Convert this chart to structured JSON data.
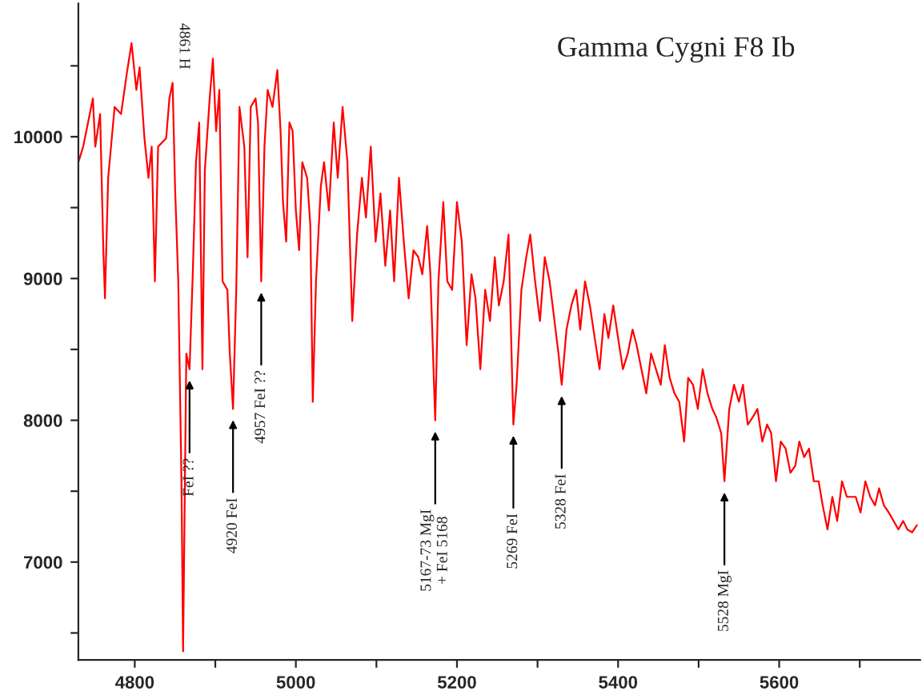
{
  "chart_data": {
    "type": "line",
    "title": "Gamma Cygni F8 Ib",
    "color": "#ff0000",
    "xlim": [
      4730,
      5775
    ],
    "ylim": [
      6310,
      10940
    ],
    "xticks": [
      4800,
      {
        "value": 4900,
        "label": null
      },
      5000,
      {
        "value": 5100,
        "label": null
      },
      5200,
      {
        "value": 5300,
        "label": null
      },
      5400,
      {
        "value": 5500,
        "label": null
      },
      5600,
      {
        "value": 5700,
        "label": null
      }
    ],
    "yticks": [
      {
        "value": 6500,
        "label": null
      },
      7000,
      {
        "value": 7500,
        "label": null
      },
      8000,
      {
        "value": 8500,
        "label": null
      },
      9000,
      {
        "value": 9500,
        "label": null
      },
      10000,
      {
        "value": 10500,
        "label": null
      }
    ],
    "x": [
      4730,
      4736,
      4742,
      4748,
      4751,
      4757,
      4761,
      4763,
      4767,
      4775,
      4783,
      4790,
      4796,
      4802,
      4806,
      4812,
      4817,
      4821,
      4825,
      4829,
      4839,
      4843,
      4847,
      4850,
      4854,
      4858,
      4860,
      4864,
      4868,
      4872,
      4876,
      4880,
      4884,
      4887,
      4893,
      4897,
      4901,
      4905,
      4909,
      4915,
      4918,
      4922,
      4926,
      4930,
      4936,
      4940,
      4944,
      4950,
      4953,
      4957,
      4961,
      4965,
      4971,
      4977,
      4981,
      4984,
      4988,
      4992,
      4996,
      5000,
      5004,
      5008,
      5014,
      5018,
      5021,
      5025,
      5031,
      5035,
      5041,
      5047,
      5052,
      5058,
      5064,
      5070,
      5076,
      5082,
      5087,
      5093,
      5099,
      5105,
      5111,
      5117,
      5122,
      5128,
      5134,
      5140,
      5146,
      5152,
      5157,
      5163,
      5167,
      5173,
      5177,
      5183,
      5188,
      5194,
      5200,
      5206,
      5212,
      5218,
      5223,
      5229,
      5235,
      5241,
      5247,
      5252,
      5258,
      5264,
      5270,
      5274,
      5280,
      5286,
      5291,
      5297,
      5303,
      5309,
      5315,
      5320,
      5326,
      5330,
      5336,
      5342,
      5348,
      5353,
      5359,
      5365,
      5371,
      5377,
      5383,
      5388,
      5394,
      5400,
      5406,
      5412,
      5418,
      5423,
      5429,
      5435,
      5441,
      5447,
      5453,
      5458,
      5464,
      5470,
      5476,
      5482,
      5487,
      5493,
      5499,
      5505,
      5511,
      5517,
      5522,
      5528,
      5532,
      5538,
      5544,
      5550,
      5555,
      5561,
      5567,
      5573,
      5579,
      5585,
      5590,
      5596,
      5602,
      5608,
      5614,
      5620,
      5625,
      5631,
      5637,
      5643,
      5649,
      5654,
      5660,
      5666,
      5672,
      5678,
      5684,
      5689,
      5695,
      5701,
      5707,
      5713,
      5719,
      5724,
      5730,
      5736,
      5742,
      5748,
      5754,
      5759,
      5765,
      5771
    ],
    "values": [
      9820,
      9930,
      10100,
      10270,
      9930,
      10160,
      9200,
      8860,
      9710,
      10210,
      10160,
      10440,
      10660,
      10330,
      10490,
      9990,
      9710,
      9930,
      8980,
      9930,
      9990,
      10270,
      10380,
      9650,
      8980,
      7570,
      6370,
      8470,
      8360,
      9030,
      9820,
      10100,
      8360,
      9760,
      10270,
      10550,
      10040,
      10330,
      8980,
      8920,
      8470,
      8080,
      8920,
      10210,
      9930,
      9150,
      10210,
      10270,
      10100,
      8980,
      9930,
      10330,
      10210,
      10470,
      10040,
      9540,
      9260,
      10100,
      10040,
      9480,
      9200,
      9820,
      9710,
      9370,
      8130,
      8980,
      9650,
      9820,
      9480,
      10100,
      9710,
      10210,
      9820,
      8700,
      9310,
      9710,
      9430,
      9930,
      9260,
      9600,
      9090,
      9480,
      8980,
      9710,
      9260,
      8860,
      9200,
      9150,
      9030,
      9370,
      9030,
      8000,
      8980,
      9540,
      8980,
      8920,
      9540,
      9260,
      8530,
      9030,
      8860,
      8360,
      8920,
      8700,
      9150,
      8810,
      8980,
      9310,
      7970,
      8250,
      8920,
      9150,
      9310,
      8980,
      8700,
      9150,
      8980,
      8750,
      8470,
      8250,
      8640,
      8810,
      8920,
      8640,
      8980,
      8810,
      8580,
      8360,
      8750,
      8580,
      8810,
      8580,
      8360,
      8470,
      8640,
      8530,
      8360,
      8190,
      8470,
      8360,
      8250,
      8530,
      8300,
      8190,
      8130,
      7850,
      8300,
      8250,
      8080,
      8360,
      8190,
      8080,
      8020,
      7910,
      7570,
      8080,
      8250,
      8130,
      8250,
      7970,
      8020,
      8080,
      7850,
      7970,
      7910,
      7570,
      7850,
      7800,
      7630,
      7680,
      7850,
      7740,
      7800,
      7570,
      7570,
      7400,
      7230,
      7460,
      7290,
      7570,
      7460,
      7460,
      7460,
      7350,
      7570,
      7460,
      7400,
      7520,
      7400,
      7350,
      7290,
      7230,
      7290,
      7230,
      7210,
      7260
    ],
    "annotations": [
      "4861 H",
      {
        "text": "FeI ??",
        "x": 4868,
        "y": 8360
      },
      {
        "text": "4920 FeI",
        "x": 4922,
        "y": 8080
      },
      {
        "text": "4957 FeI ??",
        "x": 4957,
        "y": 8980
      },
      {
        "text": "5167-73 MgI\n+ FeI 5168",
        "x": 5173,
        "y": 8000
      },
      {
        "text": "5269 FeI",
        "x": 5270,
        "y": 7970
      },
      {
        "text": "5328 FeI",
        "x": 5330,
        "y": 8250
      },
      {
        "text": "5528 MgI",
        "x": 5532,
        "y": 7570
      }
    ]
  }
}
